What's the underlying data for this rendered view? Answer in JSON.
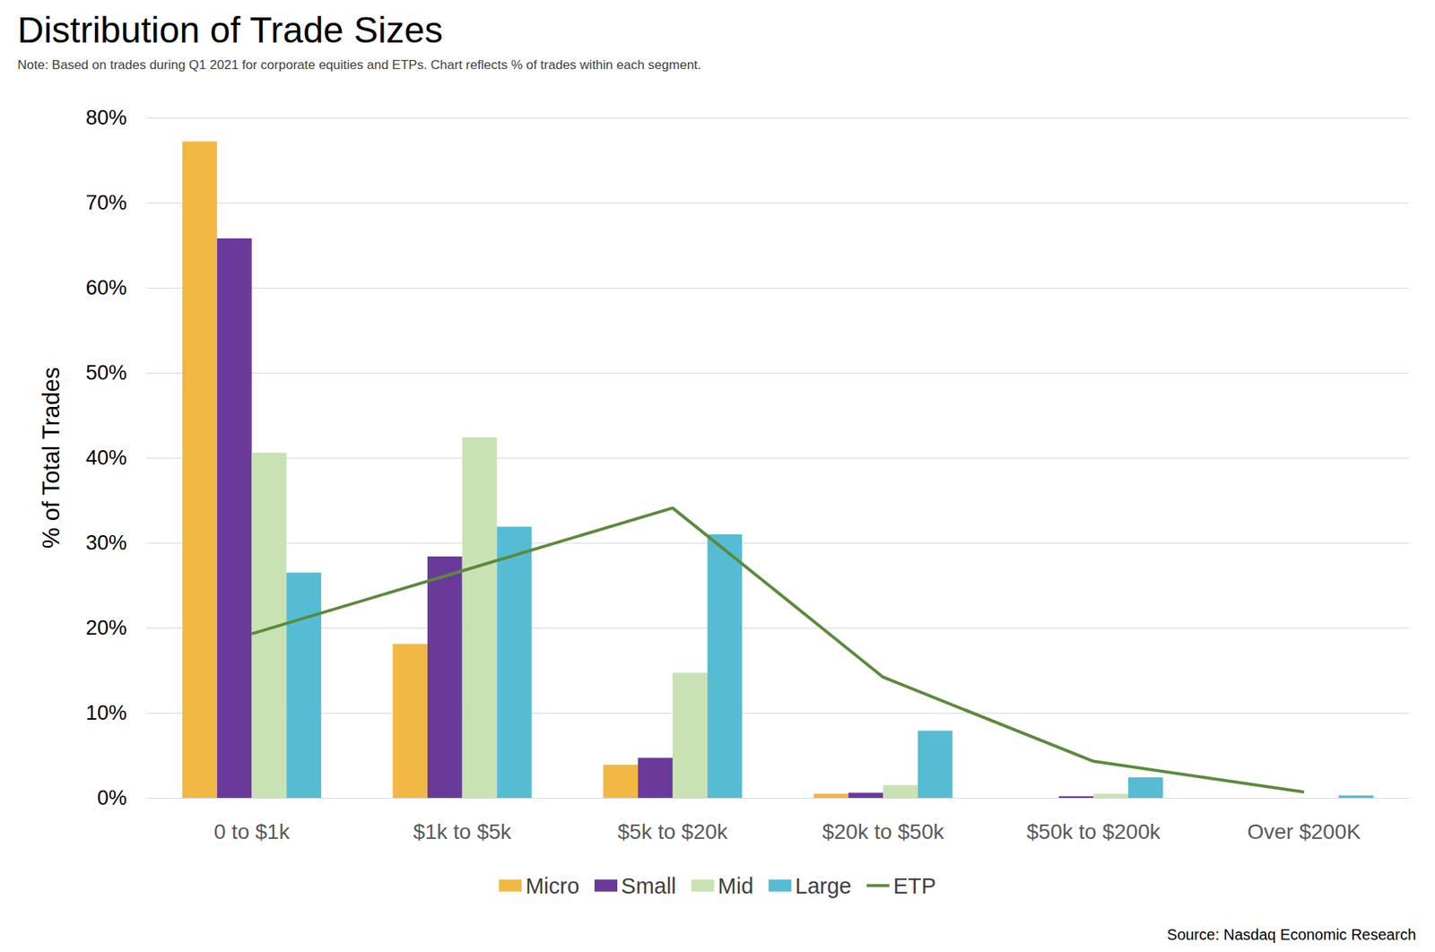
{
  "chart_data": {
    "type": "bar",
    "title": "Distribution of Trade Sizes",
    "subtitle": "Note: Based on trades during Q1 2021 for corporate equities and ETPs. Chart reflects % of trades within each segment.",
    "ylabel": "% of Total Trades",
    "annotations": [
      "Source: Nasdaq Economic Research"
    ],
    "categories": [
      "0 to $1k",
      "$1k to $5k",
      "$5k to $20k",
      "$20k to $50k",
      "$50k to $200k",
      "Over $200K"
    ],
    "series": [
      {
        "name": "Micro",
        "type": "bar",
        "color": "#f2b844",
        "values": [
          77.2,
          18.1,
          3.9,
          0.5,
          0,
          0
        ]
      },
      {
        "name": "Small",
        "type": "bar",
        "color": "#6a3a9a",
        "values": [
          65.8,
          28.4,
          4.7,
          0.6,
          0.2,
          0
        ]
      },
      {
        "name": "Mid",
        "type": "bar",
        "color": "#c9e2b3",
        "values": [
          40.6,
          42.4,
          14.7,
          1.5,
          0.5,
          0
        ]
      },
      {
        "name": "Large",
        "type": "bar",
        "color": "#55bcd3",
        "values": [
          26.5,
          31.9,
          31.0,
          7.9,
          2.4,
          0.3
        ]
      },
      {
        "name": "ETP",
        "type": "line",
        "color": "#5b8a3c",
        "values": [
          19.3,
          26.7,
          34.1,
          14.2,
          4.3,
          0.7
        ]
      }
    ],
    "ylim": [
      0,
      80
    ],
    "yticks": [
      {
        "value": 0,
        "label": "0%"
      },
      {
        "value": 10,
        "label": "10%"
      },
      {
        "value": 20,
        "label": "20%"
      },
      {
        "value": 30,
        "label": "30%"
      },
      {
        "value": 40,
        "label": "40%"
      },
      {
        "value": 50,
        "label": "50%"
      },
      {
        "value": 60,
        "label": "60%"
      },
      {
        "value": 70,
        "label": "70%"
      },
      {
        "value": 80,
        "label": "80%"
      }
    ],
    "grid": true,
    "legend": "bottom"
  }
}
